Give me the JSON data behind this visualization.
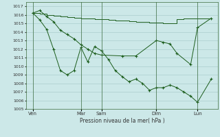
{
  "title": "Pression niveau de la mer( hPa )",
  "bg_color": "#cce8e8",
  "grid_color": "#aacece",
  "line_color": "#1a5c1a",
  "ylim": [
    1005,
    1017.5
  ],
  "yticks": [
    1005,
    1006,
    1007,
    1008,
    1009,
    1010,
    1011,
    1012,
    1013,
    1014,
    1015,
    1016,
    1017
  ],
  "xlim": [
    0,
    28
  ],
  "xtick_positions": [
    1,
    8,
    11,
    19,
    25
  ],
  "xtick_labels": [
    "Ven",
    "Mar",
    "Sam",
    "Dim",
    "Lun"
  ],
  "vlines": [
    1,
    8,
    11,
    19,
    25
  ],
  "line1_x": [
    1,
    2,
    3,
    4,
    5,
    6,
    7,
    8,
    9,
    10,
    11,
    12,
    13,
    14,
    15,
    16,
    17,
    18,
    19,
    20,
    21,
    22,
    23,
    24,
    25,
    26,
    27
  ],
  "line1_y": [
    1016.2,
    1016.1,
    1016.0,
    1015.9,
    1015.8,
    1015.7,
    1015.65,
    1015.6,
    1015.55,
    1015.5,
    1015.45,
    1015.4,
    1015.35,
    1015.3,
    1015.25,
    1015.2,
    1015.15,
    1015.1,
    1015.05,
    1015.0,
    1015.0,
    1015.5,
    1015.6,
    1015.6,
    1015.6,
    1015.6,
    1015.6
  ],
  "line2_x": [
    1,
    2,
    3,
    4,
    5,
    6,
    7,
    8,
    9,
    10,
    11,
    14,
    16,
    19,
    20,
    21,
    22,
    24,
    25,
    27
  ],
  "line2_y": [
    1016.2,
    1016.5,
    1015.8,
    1015.2,
    1014.2,
    1013.7,
    1013.2,
    1012.5,
    1012.0,
    1011.5,
    1011.3,
    1011.2,
    1011.2,
    1013.0,
    1012.8,
    1012.6,
    1011.5,
    1010.2,
    1014.5,
    1015.6
  ],
  "line3_x": [
    1,
    2,
    3,
    4,
    5,
    6,
    7,
    8,
    9,
    10,
    11,
    12,
    13,
    14,
    15,
    16,
    17,
    18,
    19,
    20,
    21,
    22,
    23,
    24,
    25,
    27
  ],
  "line3_y": [
    1016.2,
    1015.4,
    1014.3,
    1012.0,
    1009.5,
    1009.0,
    1009.5,
    1012.2,
    1010.5,
    1012.3,
    1011.8,
    1010.8,
    1009.5,
    1008.8,
    1008.2,
    1008.5,
    1008.0,
    1007.2,
    1007.5,
    1007.5,
    1007.8,
    1007.5,
    1007.0,
    1006.5,
    1005.8,
    1008.5
  ]
}
